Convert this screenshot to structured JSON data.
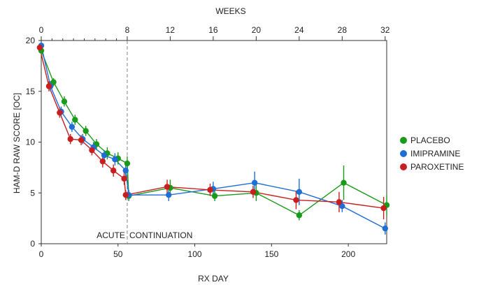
{
  "chart_data": {
    "type": "line",
    "xlabel": "RX DAY",
    "ylabel": "HAM-D RAW SCORE [OC]",
    "top_axis_label": "WEEKS",
    "xlim": [
      0,
      225
    ],
    "ylim": [
      0,
      20
    ],
    "x_ticks": [
      0,
      50,
      100,
      150,
      200
    ],
    "y_ticks": [
      0,
      5,
      10,
      15,
      20
    ],
    "top_ticks": [
      {
        "label": "0",
        "day": 0
      },
      {
        "label": "8",
        "day": 56
      },
      {
        "label": "12",
        "day": 84
      },
      {
        "label": "16",
        "day": 112
      },
      {
        "label": "20",
        "day": 140
      },
      {
        "label": "24",
        "day": 168
      },
      {
        "label": "28",
        "day": 196
      },
      {
        "label": "32",
        "day": 224
      }
    ],
    "minor_top_ticks": [
      7,
      14,
      21,
      28,
      35,
      42,
      49
    ],
    "divider_day": 56,
    "phase_labels": [
      "ACUTE",
      "CONTINUATION"
    ],
    "legend_position": "right",
    "series": [
      {
        "name": "PLACEBO",
        "color": "#1a9a1a",
        "points": [
          {
            "x": 0,
            "y": 19.0,
            "err": 0.3
          },
          {
            "x": 8,
            "y": 15.9,
            "err": 0.4
          },
          {
            "x": 15,
            "y": 14.0,
            "err": 0.5
          },
          {
            "x": 22,
            "y": 12.2,
            "err": 0.5
          },
          {
            "x": 29,
            "y": 11.1,
            "err": 0.5
          },
          {
            "x": 36,
            "y": 9.8,
            "err": 0.5
          },
          {
            "x": 43,
            "y": 8.9,
            "err": 0.6
          },
          {
            "x": 50,
            "y": 8.4,
            "err": 0.6
          },
          {
            "x": 56,
            "y": 7.9,
            "err": 0.7
          },
          {
            "x": 57,
            "y": 4.7,
            "err": 0.5
          },
          {
            "x": 84,
            "y": 5.5,
            "err": 0.8
          },
          {
            "x": 113,
            "y": 4.7,
            "err": 0.5
          },
          {
            "x": 140,
            "y": 5.0,
            "err": 0.8
          },
          {
            "x": 168,
            "y": 2.8,
            "err": 0.5
          },
          {
            "x": 197,
            "y": 6.0,
            "err": 1.7
          },
          {
            "x": 225,
            "y": 3.8,
            "err": 1.0
          }
        ]
      },
      {
        "name": "IMIPRAMINE",
        "color": "#1f6ed4",
        "points": [
          {
            "x": 0,
            "y": 19.5,
            "err": 0.3
          },
          {
            "x": 6,
            "y": 15.5,
            "err": 0.5
          },
          {
            "x": 13,
            "y": 13.0,
            "err": 0.5
          },
          {
            "x": 20,
            "y": 11.5,
            "err": 0.5
          },
          {
            "x": 27,
            "y": 10.3,
            "err": 0.5
          },
          {
            "x": 34,
            "y": 9.5,
            "err": 0.5
          },
          {
            "x": 41,
            "y": 8.7,
            "err": 0.5
          },
          {
            "x": 48,
            "y": 8.3,
            "err": 0.6
          },
          {
            "x": 55,
            "y": 7.2,
            "err": 0.8
          },
          {
            "x": 57,
            "y": 4.8,
            "err": 0.5
          },
          {
            "x": 83,
            "y": 4.8,
            "err": 0.6
          },
          {
            "x": 112,
            "y": 5.4,
            "err": 0.7
          },
          {
            "x": 139,
            "y": 6.0,
            "err": 1.1
          },
          {
            "x": 168,
            "y": 5.1,
            "err": 1.3
          },
          {
            "x": 196,
            "y": 3.7,
            "err": 0.6
          },
          {
            "x": 224,
            "y": 1.5,
            "err": 0.6
          }
        ]
      },
      {
        "name": "PAROXETINE",
        "color": "#c81e1e",
        "points": [
          {
            "x": -1,
            "y": 19.3,
            "err": 0.3
          },
          {
            "x": 5,
            "y": 15.5,
            "err": 0.5
          },
          {
            "x": 12,
            "y": 12.9,
            "err": 0.5
          },
          {
            "x": 19,
            "y": 10.3,
            "err": 0.5
          },
          {
            "x": 26,
            "y": 10.2,
            "err": 0.5
          },
          {
            "x": 33,
            "y": 9.2,
            "err": 0.5
          },
          {
            "x": 40,
            "y": 8.1,
            "err": 0.6
          },
          {
            "x": 47,
            "y": 7.2,
            "err": 0.6
          },
          {
            "x": 54,
            "y": 6.4,
            "err": 0.6
          },
          {
            "x": 55,
            "y": 4.8,
            "err": 0.5
          },
          {
            "x": 82,
            "y": 5.6,
            "err": 0.7
          },
          {
            "x": 110,
            "y": 5.3,
            "err": 0.6
          },
          {
            "x": 138,
            "y": 5.1,
            "err": 0.6
          },
          {
            "x": 166,
            "y": 4.3,
            "err": 0.9
          },
          {
            "x": 194,
            "y": 4.1,
            "err": 1.0
          },
          {
            "x": 223,
            "y": 3.5,
            "err": 1.1
          }
        ]
      }
    ]
  }
}
